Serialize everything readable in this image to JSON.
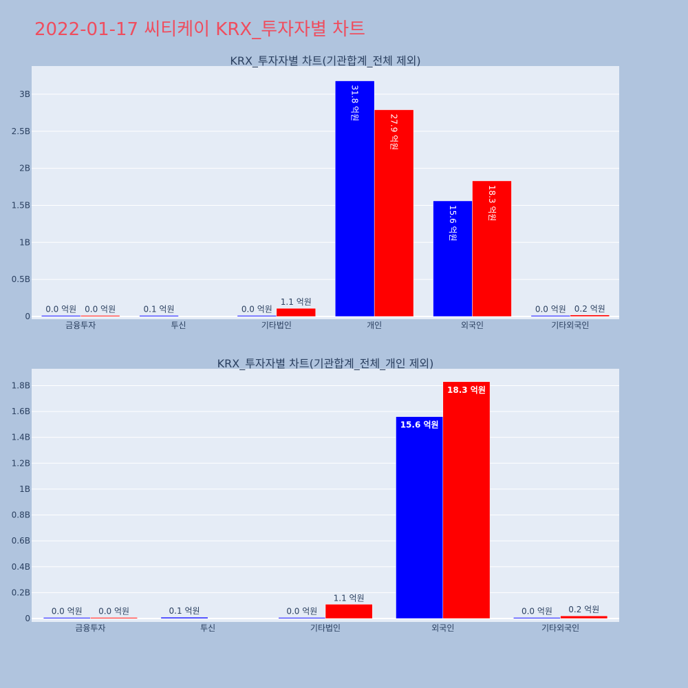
{
  "page_title": "2022-01-17 씨티케이 KRX_투자자별 차트",
  "colors": {
    "buy": "#0000ff",
    "sell": "#ff0000",
    "plot_bg": "#e5ecf6",
    "paper_bg": "#b0c4de",
    "title": "#ef4d5e"
  },
  "chart_data": [
    {
      "type": "bar",
      "title": "KRX_투자자별 차트(기관합계_전체 제외)",
      "categories": [
        "금융투자",
        "투신",
        "기타법인",
        "개인",
        "외국인",
        "기타외국인"
      ],
      "series": [
        {
          "values": [
            0.001,
            0.01,
            0.002,
            3.18,
            1.56,
            0.002
          ],
          "labels": [
            "0.0 억원",
            "0.1 억원",
            "0.0 억원",
            "31.8 억원",
            "15.6 억원",
            "0.0 억원"
          ]
        },
        {
          "values": [
            0.001,
            0.0,
            0.11,
            2.79,
            1.83,
            0.02
          ],
          "labels": [
            "0.0 억원",
            "",
            "1.1 억원",
            "27.9 억원",
            "18.3 억원",
            "0.2 억원"
          ]
        }
      ],
      "ylim": [
        0,
        3.38
      ],
      "yticks": [
        0,
        0.5,
        1,
        1.5,
        2,
        2.5,
        3
      ],
      "ytick_labels": [
        "0",
        "0.5B",
        "1B",
        "1.5B",
        "2B",
        "2.5B",
        "3B"
      ],
      "grid": true,
      "inside_label_style": "vertical"
    },
    {
      "type": "bar",
      "title": "KRX_투자자별 차트(기관합계_전체_개인 제외)",
      "categories": [
        "금융투자",
        "투신",
        "기타법인",
        "외국인",
        "기타외국인"
      ],
      "series": [
        {
          "values": [
            0.001,
            0.01,
            0.002,
            1.56,
            0.002
          ],
          "labels": [
            "0.0 억원",
            "0.1 억원",
            "0.0 억원",
            "15.6 억원",
            "0.0 억원"
          ]
        },
        {
          "values": [
            0.001,
            0.0,
            0.11,
            1.83,
            0.02
          ],
          "labels": [
            "0.0 억원",
            "",
            "1.1 억원",
            "18.3 억원",
            "0.2 억원"
          ]
        }
      ],
      "ylim": [
        0,
        1.93
      ],
      "yticks": [
        0,
        0.2,
        0.4,
        0.6,
        0.8,
        1,
        1.2,
        1.4,
        1.6,
        1.8
      ],
      "ytick_labels": [
        "0",
        "0.2B",
        "0.4B",
        "0.6B",
        "0.8B",
        "1B",
        "1.2B",
        "1.4B",
        "1.6B",
        "1.8B"
      ],
      "grid": true,
      "inside_label_style": "horizontal"
    }
  ]
}
